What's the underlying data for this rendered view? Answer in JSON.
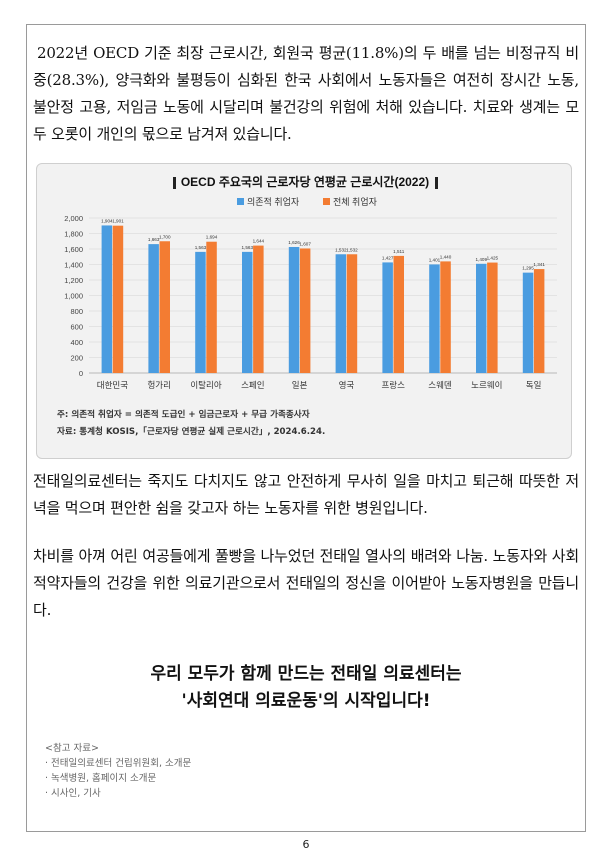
{
  "intro_paragraph": "2022년 OECD 기준 최장 근로시간, 회원국 평균(11.8%)의 두 배를 넘는 비정규직 비중(28.3%), 양극화와 불평등이 심화된 한국 사회에서 노동자들은 여전히 장시간 노동, 불안정 고용, 저임금 노동에 시달리며 불건강의 위험에 처해 있습니다. 치료와 생계는 모두 오롯이 개인의 몫으로 남겨져 있습니다.",
  "chart_data": {
    "type": "bar",
    "title": "OECD 주요국의 근로자당 연평균 근로시간(2022)",
    "categories": [
      "대한민국",
      "헝가리",
      "이탈리아",
      "스페인",
      "일본",
      "영국",
      "프랑스",
      "스웨덴",
      "노르웨이",
      "독일"
    ],
    "series": [
      {
        "name": "의존적 취업자",
        "values": [
          1904,
          1663,
          1563,
          1563,
          1626,
          1532,
          1427,
          1401,
          1409,
          1295
        ],
        "labels": [
          "1,904",
          "1,663",
          "1,563",
          "1,563",
          "1,626",
          "1,532",
          "1,427",
          "1,401",
          "1,409",
          "1,295"
        ]
      },
      {
        "name": "전체 취업자",
        "values": [
          1901,
          1700,
          1694,
          1644,
          1607,
          1532,
          1511,
          1440,
          1425,
          1341
        ],
        "labels": [
          "1,901",
          "1,700",
          "1,694",
          "1,644",
          "1,607",
          "1,532",
          "1,511",
          "1,440",
          "1,425",
          "1,341"
        ]
      }
    ],
    "yticks": [
      "2,000",
      "1,800",
      "1,600",
      "1,400",
      "1,200",
      "1,000",
      "800",
      "600",
      "400",
      "200",
      "0"
    ],
    "ylim": [
      0,
      2000
    ],
    "legend_position": "top-center",
    "grid": true,
    "note": "주: 의존적 취업자 = 의존적 도급인 + 임금근로자 + 무급 가족종사자",
    "source": "자료: 통계청 KOSIS,「근로자당 연평균 실제 근로시간」, 2024.6.24.",
    "colors": {
      "series1": "#4a9ce0",
      "series2": "#f37c32",
      "title_marker": "#222222"
    }
  },
  "paragraph_2": "전태일의료센터는 죽지도 다치지도 않고 안전하게 무사히 일을 마치고 퇴근해 따뜻한 저녁을 먹으며 편안한 쉼을 갖고자 하는 노동자를 위한 병원입니다.",
  "paragraph_3": "차비를 아껴 어린 여공들에게 풀빵을 나누었던 전태일 열사의 배려와 나눔. 노동자와 사회적약자들의 건강을 위한 의료기관으로서 전태일의 정신을 이어받아 노동자병원을 만듭니다.",
  "headline_line1": "우리 모두가 함께 만드는 전태일 의료센터는",
  "headline_line2": "'사회연대 의료운동'의 시작입니다!",
  "references": {
    "heading": "<참고 자료>",
    "items": [
      "· 전태일의료센터 건립위원회, 소개문",
      "· 녹색병원, 홈페이지 소개문",
      "· 시사인, 기사"
    ]
  },
  "page_number": "6"
}
